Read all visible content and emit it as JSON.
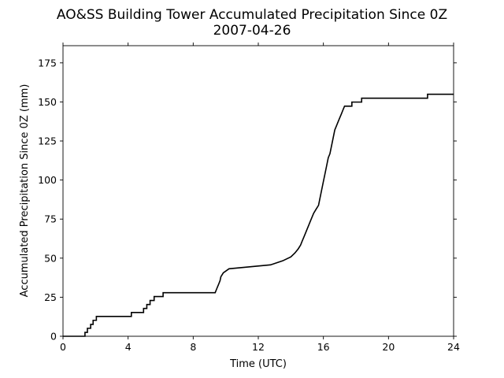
{
  "chart_data": {
    "type": "line",
    "title": "AO&SS Building Tower Accumulated Precipitation Since 0Z",
    "subtitle": "2007-04-26",
    "xlabel": "Time (UTC)",
    "ylabel": "Accumulated Precipitation Since 0Z (mm)",
    "xlim": [
      0,
      24
    ],
    "ylim": [
      0,
      186
    ],
    "xticks": [
      0,
      4,
      8,
      12,
      16,
      20,
      24
    ],
    "yticks": [
      0,
      25,
      50,
      75,
      100,
      125,
      150,
      175
    ],
    "grid": false,
    "legend": "none",
    "line_color": "#000000",
    "series": [
      {
        "x": [
          0.0,
          1.35,
          1.35,
          1.5,
          1.5,
          1.7,
          1.7,
          1.85,
          1.85,
          2.05,
          2.05,
          4.2,
          4.2,
          4.95,
          4.95,
          5.15,
          5.15,
          5.35,
          5.35,
          5.6,
          5.6,
          6.15,
          6.15,
          9.35,
          9.45,
          9.55,
          9.65,
          9.7,
          9.85,
          9.85,
          10.2,
          10.2,
          12.75,
          12.75,
          13.5,
          13.5,
          14.0,
          14.0,
          14.25,
          14.25,
          14.45,
          14.45,
          14.6,
          14.7,
          14.8,
          14.9,
          15.0,
          15.1,
          15.2,
          15.3,
          15.4,
          15.55,
          15.55,
          15.7,
          15.8,
          15.9,
          16.0,
          16.1,
          16.2,
          16.3,
          16.4,
          16.5,
          16.6,
          16.7,
          16.8,
          16.9,
          17.0,
          17.1,
          17.2,
          17.3,
          17.4,
          17.5,
          17.6,
          17.75,
          17.75,
          18.35,
          18.35,
          21.55,
          21.55,
          22.4,
          22.4,
          24.0
        ],
        "y": [
          0.0,
          0.0,
          2.5,
          2.5,
          5.1,
          5.1,
          7.6,
          7.6,
          10.2,
          10.2,
          12.7,
          12.7,
          15.2,
          15.2,
          17.8,
          17.8,
          20.3,
          20.3,
          22.9,
          22.9,
          25.4,
          25.4,
          27.9,
          27.9,
          30.5,
          33.0,
          35.6,
          38.1,
          40.6,
          40.6,
          43.2,
          43.2,
          45.7,
          45.7,
          48.3,
          48.3,
          50.8,
          50.8,
          53.3,
          53.3,
          55.9,
          55.9,
          58.4,
          61.0,
          63.5,
          66.0,
          68.6,
          71.1,
          73.7,
          76.2,
          78.7,
          81.3,
          81.3,
          83.8,
          88.9,
          94.0,
          99.1,
          104.1,
          109.2,
          114.3,
          116.8,
          121.9,
          127.0,
          132.1,
          134.6,
          137.2,
          139.7,
          142.2,
          144.8,
          147.3,
          147.3,
          147.3,
          147.3,
          147.3,
          149.9,
          149.9,
          152.4,
          152.4,
          152.4,
          152.4,
          154.9,
          154.9
        ]
      }
    ]
  }
}
